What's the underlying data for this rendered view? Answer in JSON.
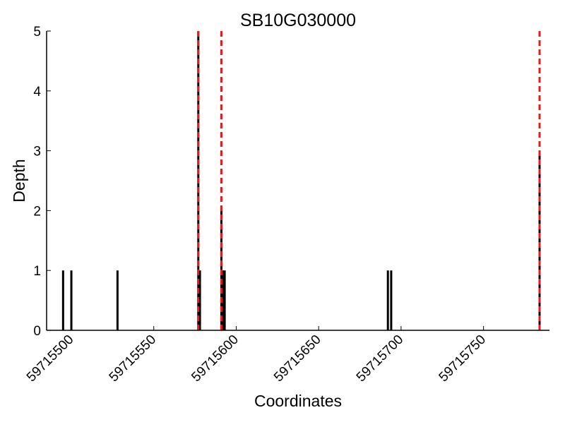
{
  "chart_data": {
    "type": "bar",
    "title": "SB10G030000",
    "xlabel": "Coordinates",
    "ylabel": "Depth",
    "xlim": [
      59715485,
      59715790
    ],
    "ylim": [
      0,
      5
    ],
    "x_ticks": [
      59715500,
      59715550,
      59715600,
      59715650,
      59715700,
      59715750
    ],
    "x_tick_labels": [
      "59715500",
      "59715550",
      "59715600",
      "59715650",
      "59715700",
      "59715750"
    ],
    "y_ticks": [
      0,
      1,
      2,
      3,
      4,
      5
    ],
    "y_tick_labels": [
      "0",
      "1",
      "2",
      "3",
      "4",
      "5"
    ],
    "grid": false,
    "bar_color": "#000000",
    "series": [
      {
        "x": [
          59715495,
          59715500,
          59715528,
          59715577,
          59715578,
          59715591,
          59715592,
          59715593,
          59715692,
          59715694,
          59715784
        ],
        "values": [
          1,
          1,
          1,
          5,
          1,
          2,
          1,
          1,
          1,
          1,
          3
        ]
      }
    ],
    "vertical_lines": {
      "color": "#e41a1c",
      "style": "dashed",
      "x": [
        59715577,
        59715591,
        59715784
      ]
    }
  }
}
